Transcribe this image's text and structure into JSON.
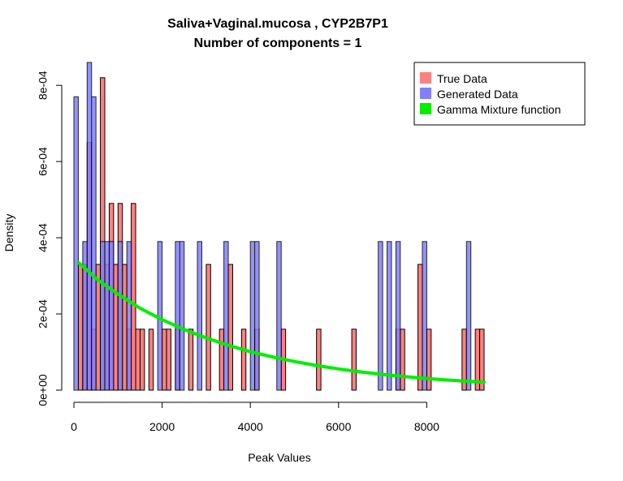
{
  "chart_data": {
    "type": "bar",
    "title": "Saliva+Vaginal.mucosa , CYP2B7P1",
    "subtitle": "Number of components =  1",
    "xlabel": "Peak Values",
    "ylabel": "Density",
    "xlim": [
      0,
      9300
    ],
    "ylim": [
      0,
      0.00086
    ],
    "x_ticks": [
      0,
      2000,
      4000,
      6000,
      8000
    ],
    "x_tick_labels": [
      "0",
      "2000",
      "4000",
      "6000",
      "8000"
    ],
    "y_ticks": [
      0,
      0.0002,
      0.0004,
      0.0006,
      0.0008
    ],
    "y_tick_labels": [
      "0e+00",
      "2e-04",
      "4e-04",
      "6e-04",
      "8e-04"
    ],
    "bin_width": 100,
    "legend_position": "top-right",
    "series": [
      {
        "name": "True Data",
        "color": "#ff8080",
        "bins": [
          [
            100,
            0.00033
          ],
          [
            200,
            0.00033
          ],
          [
            300,
            0.00065
          ],
          [
            400,
            0.00016
          ],
          [
            500,
            0.00033
          ],
          [
            600,
            0.00082
          ],
          [
            700,
            0.00033
          ],
          [
            800,
            0.00049
          ],
          [
            900,
            0.00033
          ],
          [
            1000,
            0.00049
          ],
          [
            1100,
            0.00033
          ],
          [
            1200,
            0.00016
          ],
          [
            1300,
            0.00049
          ],
          [
            1400,
            0.00016
          ],
          [
            1500,
            0.00016
          ],
          [
            1700,
            0.00016
          ],
          [
            2000,
            0.00016
          ],
          [
            2100,
            0.00016
          ],
          [
            2300,
            0.00016
          ],
          [
            2600,
            0.00016
          ],
          [
            3000,
            0.00033
          ],
          [
            3300,
            0.00016
          ],
          [
            3500,
            0.00033
          ],
          [
            3800,
            0.00016
          ],
          [
            4100,
            0.00016
          ],
          [
            4700,
            0.00016
          ],
          [
            5500,
            0.00016
          ],
          [
            6300,
            0.00016
          ],
          [
            7300,
            0.00016
          ],
          [
            7400,
            0.00016
          ],
          [
            7800,
            0.00033
          ],
          [
            8000,
            0.00016
          ],
          [
            8800,
            0.00016
          ],
          [
            9100,
            0.00016
          ],
          [
            9200,
            0.00016
          ]
        ]
      },
      {
        "name": "Generated Data",
        "color": "#8080ff",
        "bins": [
          [
            0,
            0.00077
          ],
          [
            200,
            0.00039
          ],
          [
            300,
            0.00086
          ],
          [
            400,
            0.00077
          ],
          [
            600,
            0.00039
          ],
          [
            700,
            0.00039
          ],
          [
            800,
            0.00039
          ],
          [
            1000,
            0.00039
          ],
          [
            1200,
            0.00039
          ],
          [
            1900,
            0.00039
          ],
          [
            2300,
            0.00039
          ],
          [
            2400,
            0.00039
          ],
          [
            2800,
            0.00039
          ],
          [
            3400,
            0.00039
          ],
          [
            4000,
            0.00039
          ],
          [
            4100,
            0.00039
          ],
          [
            4600,
            0.00039
          ],
          [
            6900,
            0.00039
          ],
          [
            7100,
            0.00039
          ],
          [
            7300,
            0.00039
          ],
          [
            7900,
            0.00039
          ],
          [
            8900,
            0.00039
          ]
        ]
      },
      {
        "name": "Gamma Mixture function",
        "color": "#00ee00",
        "type": "line",
        "x": [
          100,
          300,
          500,
          750,
          1000,
          1500,
          2000,
          2500,
          3000,
          3500,
          4000,
          4500,
          5000,
          5500,
          6000,
          6500,
          7000,
          7500,
          8000,
          8500,
          9000,
          9300
        ],
        "y": [
          0.000335,
          0.000315,
          0.000293,
          0.000272,
          0.000252,
          0.000215,
          0.000185,
          0.000159,
          0.000137,
          0.000118,
          0.000101,
          8.73e-05,
          7.52e-05,
          6.47e-05,
          5.57e-05,
          4.8e-05,
          4.13e-05,
          3.56e-05,
          3.06e-05,
          2.64e-05,
          2.27e-05,
          2.08e-05
        ]
      }
    ]
  }
}
